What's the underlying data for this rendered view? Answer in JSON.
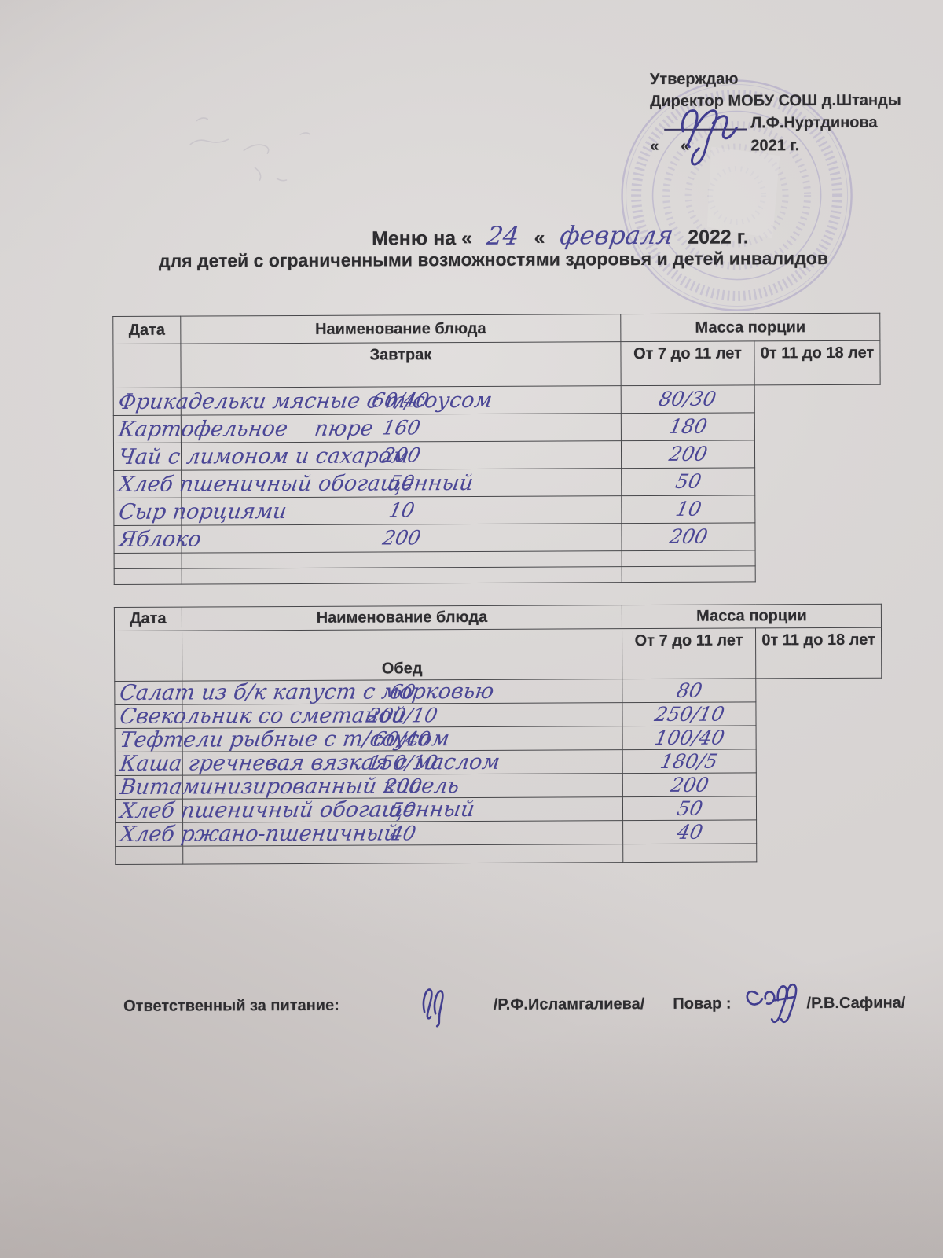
{
  "document": {
    "approval": {
      "approve_word": "Утверждаю",
      "director_line": "Директор МОБУ СОШ д.Штанды",
      "director_name": "Л.Ф.Нуртдинова",
      "date_quotes": "«     «",
      "year": "2021 г."
    },
    "title": {
      "printed_prefix": "Меню на «",
      "handwritten_day": "24",
      "printed_infix": "«",
      "handwritten_month": "февраля",
      "printed_suffix": "2022 г."
    },
    "subtitle": "для детей с ограниченными возможностями здоровья  и детей инвалидов",
    "tables": [
      {
        "meal": "Завтрак",
        "headers": {
          "date": "Дата",
          "dish": "Наименование блюда",
          "mass": "Масса порции",
          "age_7_11": "От 7 до 11 лет",
          "age_11_18": "0т 11 до 18 лет"
        },
        "rows": [
          {
            "dish": "Фрикадельки мясные с т/соусом",
            "m1": "60/40",
            "m2": "80/30"
          },
          {
            "dish": "Картофельное    пюре",
            "m1": "160",
            "m2": "180"
          },
          {
            "dish": "Чай с лимоном и сахаром",
            "m1": "200",
            "m2": "200"
          },
          {
            "dish": "Хлеб пшеничный обогащенный",
            "m1": "50",
            "m2": "50"
          },
          {
            "dish": "Сыр порциями",
            "m1": "10",
            "m2": "10"
          },
          {
            "dish": "Яблоко",
            "m1": "200",
            "m2": "200"
          },
          {
            "dish": "",
            "m1": "",
            "m2": ""
          },
          {
            "dish": "",
            "m1": "",
            "m2": ""
          }
        ]
      },
      {
        "meal": "Обед",
        "headers": {
          "date": "Дата",
          "dish": "Наименование блюда",
          "mass": "Масса порции",
          "age_7_11": "От 7 до 11 лет",
          "age_11_18": "0т 11 до 18 лет"
        },
        "rows": [
          {
            "dish": "Салат из б/к капуст с морковью",
            "m1": "60",
            "m2": "80"
          },
          {
            "dish": "Свекольник со сметаной",
            "m1": "200/10",
            "m2": "250/10"
          },
          {
            "dish": "Тефтели рыбные с т/соусом",
            "m1": "60/40",
            "m2": "100/40"
          },
          {
            "dish": "Каша гречневая вязкая с маслом",
            "m1": "150/10",
            "m2": "180/5"
          },
          {
            "dish": "Витаминизированный кисель",
            "m1": "200",
            "m2": "200"
          },
          {
            "dish": "Хлеб пшеничный обогащенный",
            "m1": "50",
            "m2": "50"
          },
          {
            "dish": "Хлеб ржано-пшеничный",
            "m1": "40",
            "m2": "40"
          },
          {
            "dish": "",
            "m1": "",
            "m2": ""
          }
        ]
      }
    ],
    "footer": {
      "responsible_label": "Ответственный за питание:",
      "responsible_name": "/Р.Ф.Исламгалиева/",
      "cook_label": "Повар :",
      "cook_name": "/Р.В.Сафина/"
    },
    "icons": {
      "stamp": "round-stamp",
      "director_signature": "signature-icon",
      "responsible_signature": "signature-icon",
      "cook_signature": "signature-icon"
    },
    "colors": {
      "ink_handwriting": "#4b4796",
      "ink_printed": "#2e2d30",
      "stamp": "#7f74b8",
      "paper": "#d7d3d2"
    }
  }
}
